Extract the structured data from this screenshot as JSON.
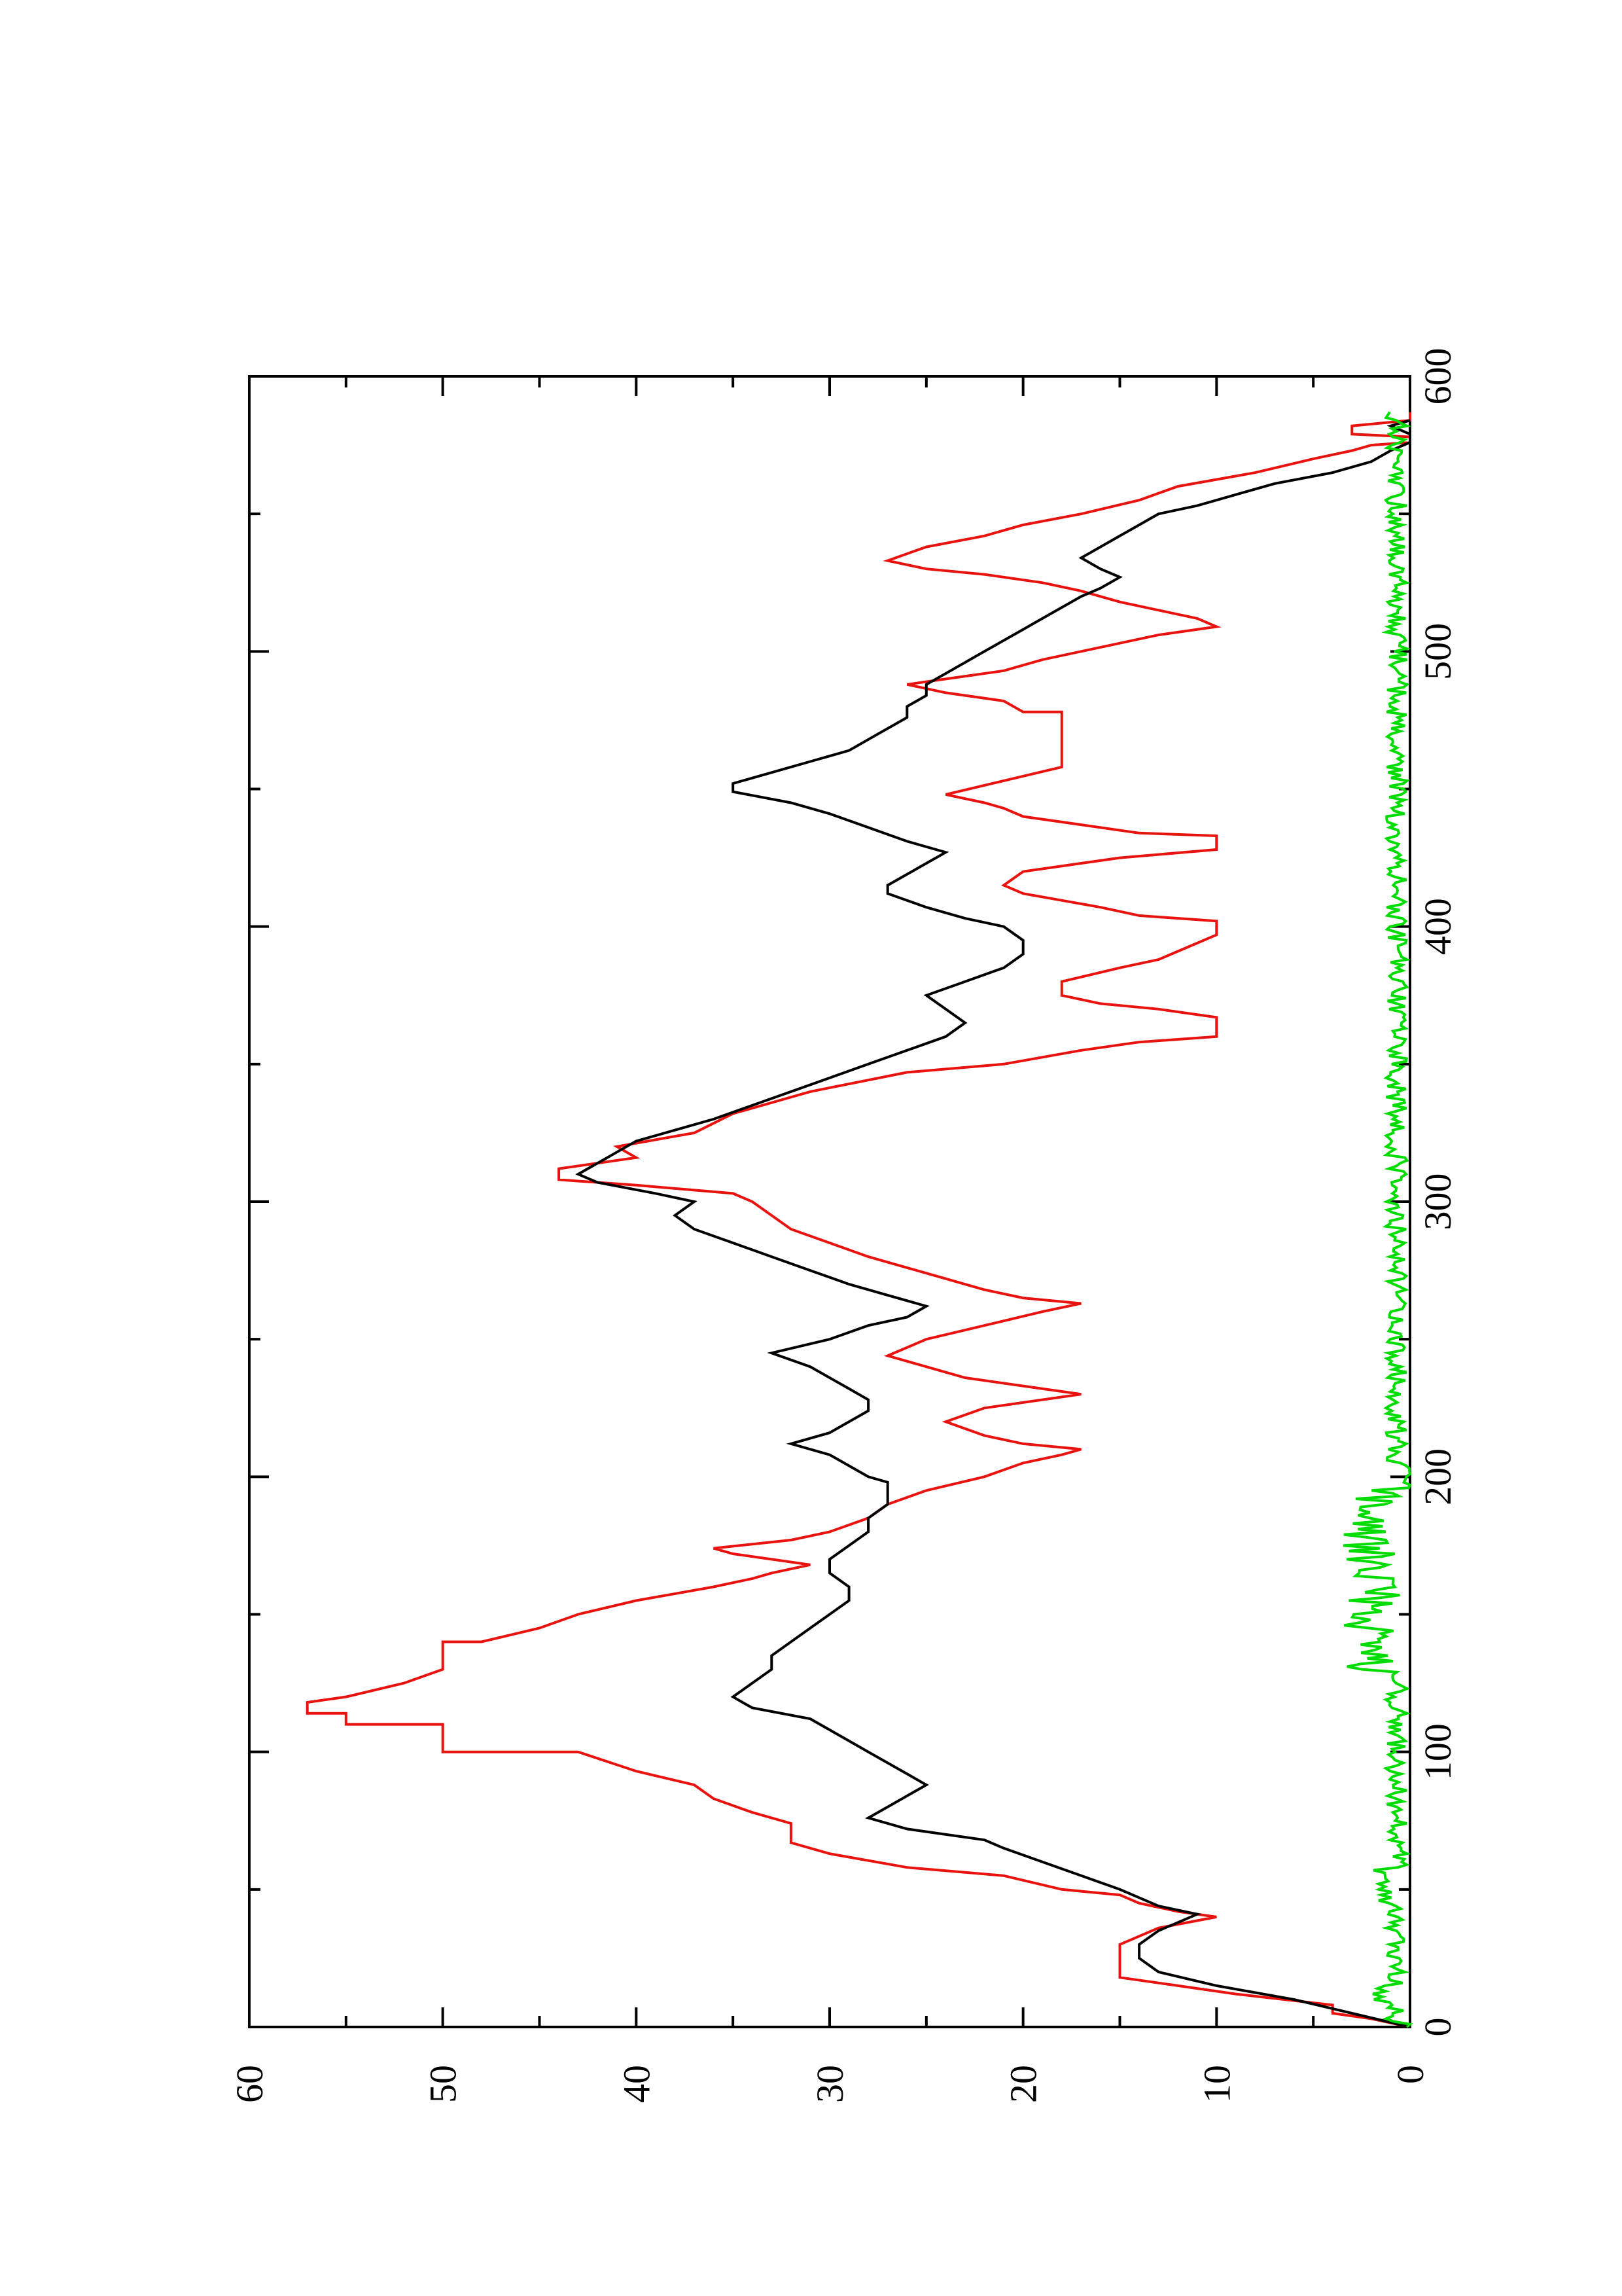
{
  "chart_data": {
    "type": "line",
    "title": "",
    "xlabel": "",
    "ylabel": "",
    "orientation": "rotated 90 degrees counter-clockwise (x axis runs bottom-to-top on the page, y axis runs left-to-right)",
    "xlim": [
      0,
      600
    ],
    "ylim": [
      0,
      60
    ],
    "xticks": [
      "0",
      "100",
      "200",
      "300",
      "400",
      "500",
      "600"
    ],
    "yticks": [
      "0",
      "10",
      "20",
      "30",
      "40",
      "50",
      "60"
    ],
    "grid": false,
    "legend": "none",
    "series": [
      {
        "color": "#e8130f",
        "style": "step",
        "points": [
          [
            0,
            0
          ],
          [
            3,
            2
          ],
          [
            5,
            4
          ],
          [
            8,
            4
          ],
          [
            12,
            9
          ],
          [
            15,
            12
          ],
          [
            18,
            15
          ],
          [
            30,
            15
          ],
          [
            33,
            14
          ],
          [
            36,
            13
          ],
          [
            40,
            10
          ],
          [
            42,
            12
          ],
          [
            45,
            14
          ],
          [
            48,
            15
          ],
          [
            50,
            18
          ],
          [
            55,
            21
          ],
          [
            58,
            26
          ],
          [
            63,
            30
          ],
          [
            67,
            32
          ],
          [
            74,
            32
          ],
          [
            78,
            34
          ],
          [
            83,
            36
          ],
          [
            88,
            37
          ],
          [
            93,
            40
          ],
          [
            100,
            43
          ],
          [
            100,
            50
          ],
          [
            110,
            50
          ],
          [
            110,
            55
          ],
          [
            114,
            55
          ],
          [
            114,
            57
          ],
          [
            118,
            57
          ],
          [
            120,
            55
          ],
          [
            125,
            52
          ],
          [
            130,
            50
          ],
          [
            140,
            50
          ],
          [
            140,
            48
          ],
          [
            145,
            45
          ],
          [
            150,
            43
          ],
          [
            155,
            40
          ],
          [
            160,
            36
          ],
          [
            163,
            34
          ],
          [
            165,
            33
          ],
          [
            168,
            31
          ],
          [
            170,
            33
          ],
          [
            172,
            35
          ],
          [
            174,
            36
          ],
          [
            177,
            32
          ],
          [
            180,
            30
          ],
          [
            185,
            28
          ],
          [
            190,
            27
          ],
          [
            195,
            25
          ],
          [
            200,
            22
          ],
          [
            205,
            20
          ],
          [
            208,
            18
          ],
          [
            210,
            17
          ],
          [
            212,
            20
          ],
          [
            215,
            22
          ],
          [
            220,
            24
          ],
          [
            225,
            22
          ],
          [
            228,
            19
          ],
          [
            230,
            17
          ],
          [
            233,
            20
          ],
          [
            236,
            23
          ],
          [
            240,
            25
          ],
          [
            244,
            27
          ],
          [
            250,
            25
          ],
          [
            255,
            22
          ],
          [
            260,
            19
          ],
          [
            263,
            17
          ],
          [
            265,
            20
          ],
          [
            268,
            22
          ],
          [
            272,
            24
          ],
          [
            276,
            26
          ],
          [
            280,
            28
          ],
          [
            285,
            30
          ],
          [
            290,
            32
          ],
          [
            295,
            33
          ],
          [
            300,
            34
          ],
          [
            303,
            35
          ],
          [
            306,
            40
          ],
          [
            308,
            44
          ],
          [
            312,
            44
          ],
          [
            316,
            40
          ],
          [
            320,
            41
          ],
          [
            325,
            37
          ],
          [
            332,
            35
          ],
          [
            340,
            31
          ],
          [
            347,
            26
          ],
          [
            350,
            21
          ],
          [
            355,
            17
          ],
          [
            358,
            14
          ],
          [
            360,
            10
          ],
          [
            367,
            10
          ],
          [
            370,
            13
          ],
          [
            372,
            16
          ],
          [
            375,
            18
          ],
          [
            380,
            18
          ],
          [
            385,
            15
          ],
          [
            388,
            13
          ],
          [
            391,
            12
          ],
          [
            394,
            11
          ],
          [
            397,
            10
          ],
          [
            402,
            10
          ],
          [
            404,
            14
          ],
          [
            407,
            16
          ],
          [
            412,
            20
          ],
          [
            415,
            21
          ],
          [
            420,
            20
          ],
          [
            425,
            15
          ],
          [
            428,
            10
          ],
          [
            433,
            10
          ],
          [
            434,
            14
          ],
          [
            437,
            17
          ],
          [
            440,
            20
          ],
          [
            443,
            21
          ],
          [
            445,
            22
          ],
          [
            448,
            24
          ],
          [
            458,
            18
          ],
          [
            478,
            18
          ],
          [
            478,
            20
          ],
          [
            482,
            21
          ],
          [
            485,
            24
          ],
          [
            488,
            26
          ],
          [
            490,
            24
          ],
          [
            493,
            21
          ],
          [
            497,
            19
          ],
          [
            500,
            17
          ],
          [
            503,
            15
          ],
          [
            506,
            13
          ],
          [
            509,
            10
          ],
          [
            512,
            11
          ],
          [
            515,
            13
          ],
          [
            518,
            15
          ],
          [
            522,
            17
          ],
          [
            525,
            19
          ],
          [
            528,
            22
          ],
          [
            530,
            25
          ],
          [
            533,
            27
          ],
          [
            538,
            25
          ],
          [
            542,
            22
          ],
          [
            546,
            20
          ],
          [
            550,
            17
          ],
          [
            555,
            14
          ],
          [
            560,
            12
          ],
          [
            565,
            8
          ],
          [
            570,
            5
          ],
          [
            573,
            3
          ],
          [
            575,
            2
          ],
          [
            576,
            0
          ],
          [
            578,
            0
          ],
          [
            579,
            3
          ],
          [
            582,
            3
          ],
          [
            584,
            0
          ],
          [
            587,
            0
          ]
        ]
      },
      {
        "color": "#000000",
        "style": "line",
        "points": [
          [
            0,
            0
          ],
          [
            5,
            3
          ],
          [
            10,
            6
          ],
          [
            15,
            10
          ],
          [
            20,
            13
          ],
          [
            25,
            14
          ],
          [
            30,
            14
          ],
          [
            35,
            13
          ],
          [
            38,
            12
          ],
          [
            41,
            11
          ],
          [
            44,
            13
          ],
          [
            47,
            14
          ],
          [
            50,
            15
          ],
          [
            55,
            17
          ],
          [
            60,
            19
          ],
          [
            65,
            21
          ],
          [
            68,
            22
          ],
          [
            72,
            26
          ],
          [
            76,
            28
          ],
          [
            80,
            27
          ],
          [
            84,
            26
          ],
          [
            88,
            25
          ],
          [
            92,
            26
          ],
          [
            96,
            27
          ],
          [
            100,
            28
          ],
          [
            104,
            29
          ],
          [
            108,
            30
          ],
          [
            112,
            31
          ],
          [
            116,
            34
          ],
          [
            120,
            35
          ],
          [
            125,
            34
          ],
          [
            130,
            33
          ],
          [
            135,
            33
          ],
          [
            140,
            32
          ],
          [
            145,
            31
          ],
          [
            150,
            30
          ],
          [
            155,
            29
          ],
          [
            160,
            29
          ],
          [
            165,
            30
          ],
          [
            170,
            30
          ],
          [
            175,
            29
          ],
          [
            180,
            28
          ],
          [
            185,
            28
          ],
          [
            190,
            27
          ],
          [
            195,
            27
          ],
          [
            198,
            27
          ],
          [
            200,
            28
          ],
          [
            204,
            29
          ],
          [
            208,
            30
          ],
          [
            212,
            32
          ],
          [
            216,
            30
          ],
          [
            220,
            29
          ],
          [
            224,
            28
          ],
          [
            228,
            28
          ],
          [
            232,
            29
          ],
          [
            236,
            30
          ],
          [
            240,
            31
          ],
          [
            245,
            33
          ],
          [
            250,
            30
          ],
          [
            255,
            28
          ],
          [
            258,
            26
          ],
          [
            262,
            25
          ],
          [
            266,
            27
          ],
          [
            270,
            29
          ],
          [
            275,
            31
          ],
          [
            280,
            33
          ],
          [
            285,
            35
          ],
          [
            290,
            37
          ],
          [
            295,
            38
          ],
          [
            300,
            37
          ],
          [
            303,
            39
          ],
          [
            307,
            42
          ],
          [
            310,
            43
          ],
          [
            314,
            42
          ],
          [
            318,
            41
          ],
          [
            322,
            40
          ],
          [
            326,
            38
          ],
          [
            330,
            36
          ],
          [
            335,
            34
          ],
          [
            340,
            32
          ],
          [
            345,
            30
          ],
          [
            350,
            28
          ],
          [
            355,
            26
          ],
          [
            360,
            24
          ],
          [
            365,
            23
          ],
          [
            370,
            24
          ],
          [
            375,
            25
          ],
          [
            380,
            23
          ],
          [
            385,
            21
          ],
          [
            390,
            20
          ],
          [
            395,
            20
          ],
          [
            400,
            21
          ],
          [
            403,
            23
          ],
          [
            407,
            25
          ],
          [
            412,
            27
          ],
          [
            415,
            27
          ],
          [
            419,
            26
          ],
          [
            423,
            25
          ],
          [
            427,
            24
          ],
          [
            431,
            26
          ],
          [
            436,
            28
          ],
          [
            441,
            30
          ],
          [
            445,
            32
          ],
          [
            449,
            35
          ],
          [
            452,
            35
          ],
          [
            456,
            33
          ],
          [
            460,
            31
          ],
          [
            464,
            29
          ],
          [
            468,
            28
          ],
          [
            472,
            27
          ],
          [
            476,
            26
          ],
          [
            480,
            26
          ],
          [
            484,
            25
          ],
          [
            488,
            25
          ],
          [
            492,
            24
          ],
          [
            496,
            23
          ],
          [
            500,
            22
          ],
          [
            504,
            21
          ],
          [
            508,
            20
          ],
          [
            512,
            19
          ],
          [
            516,
            18
          ],
          [
            520,
            17
          ],
          [
            523,
            16
          ],
          [
            527,
            15
          ],
          [
            530,
            16
          ],
          [
            534,
            17
          ],
          [
            538,
            16
          ],
          [
            542,
            15
          ],
          [
            546,
            14
          ],
          [
            550,
            13
          ],
          [
            553,
            11
          ],
          [
            557,
            9
          ],
          [
            561,
            7
          ],
          [
            565,
            4
          ],
          [
            569,
            2
          ],
          [
            573,
            1
          ],
          [
            576,
            0
          ],
          [
            579,
            0
          ],
          [
            582,
            1
          ],
          [
            584,
            0
          ]
        ]
      },
      {
        "color": "#00dc00",
        "style": "noisy",
        "mean": 0.7,
        "amplitude": 0.55,
        "step": 1,
        "xrange": [
          0,
          587
        ],
        "segments": [
          {
            "from": 0,
            "to": 2,
            "mean": 0.0
          },
          {
            "from": 10,
            "to": 16,
            "mean": 1.6
          },
          {
            "from": 46,
            "to": 58,
            "mean": 1.4
          },
          {
            "from": 130,
            "to": 196,
            "mean": 2.0,
            "amplitude": 1.5
          },
          {
            "from": 196,
            "to": 205,
            "mean": 0.1
          }
        ]
      }
    ]
  }
}
